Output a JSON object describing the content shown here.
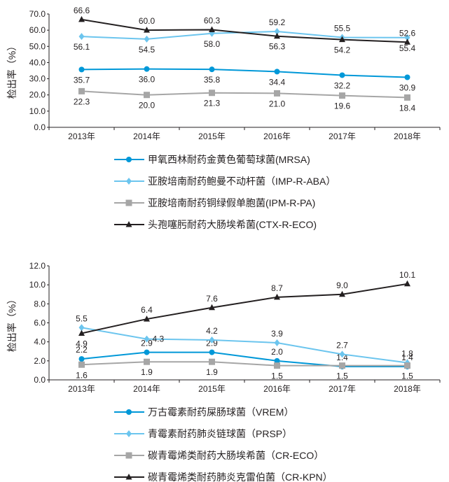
{
  "chart_data": [
    {
      "type": "line",
      "ylabel": "检出率（%）",
      "ylim": [
        0,
        70
      ],
      "yticks": [
        "0.0",
        "10.0",
        "20.0",
        "30.0",
        "40.0",
        "50.0",
        "60.0",
        "70.0"
      ],
      "categories": [
        "2013年",
        "2014年",
        "2015年",
        "2016年",
        "2017年",
        "2018年"
      ],
      "series": [
        {
          "name": "甲氧西林耐药金黄色葡萄球菌(MRSA)",
          "values": [
            35.7,
            36.0,
            35.8,
            34.4,
            32.2,
            30.9
          ],
          "color": "#0098d8",
          "marker": "circle",
          "labels": [
            "35.7",
            "36.0",
            "35.8",
            "34.4",
            "32.2",
            "30.9"
          ],
          "label_pos": [
            "below",
            "below",
            "below",
            "below",
            "below",
            "below"
          ],
          "label_color": "#1aa3de"
        },
        {
          "name": "亚胺培南耐药鲍曼不动杆菌（IMP-R-ABA）",
          "values": [
            56.1,
            54.5,
            58.0,
            59.2,
            55.5,
            55.4
          ],
          "color": "#6cc5ee",
          "marker": "diamond",
          "labels": [
            "56.1",
            "54.5",
            "58.0",
            "59.2",
            "55.5",
            "55.4"
          ],
          "label_pos": [
            "below",
            "below",
            "below",
            "above",
            "above",
            "below"
          ],
          "label_color": "#1aa3de"
        },
        {
          "name": "亚胺培南耐药铜绿假单胞菌(IPM-R-PA)",
          "values": [
            22.3,
            20.0,
            21.3,
            21.0,
            19.6,
            18.4
          ],
          "color": "#a6a6a6",
          "marker": "square",
          "labels": [
            "22.3",
            "20.0",
            "21.3",
            "21.0",
            "19.6",
            "18.4"
          ],
          "label_pos": [
            "below",
            "below",
            "below",
            "below",
            "below",
            "below"
          ],
          "label_color": "#231f20"
        },
        {
          "name": "头孢噻肟耐药大肠埃希菌(CTX-R-ECO)",
          "values": [
            66.6,
            60.0,
            60.3,
            56.3,
            54.2,
            52.6
          ],
          "color": "#231f20",
          "marker": "triangle",
          "labels": [
            "66.6",
            "60.0",
            "60.3",
            "56.3",
            "54.2",
            "52.6"
          ],
          "label_pos": [
            "above",
            "above",
            "above",
            "below",
            "below",
            "above"
          ],
          "label_color": "#231f20"
        }
      ]
    },
    {
      "type": "line",
      "ylabel": "检出率（%）",
      "ylim": [
        0,
        12
      ],
      "yticks": [
        "0.0",
        "2.0",
        "4.0",
        "6.0",
        "8.0",
        "10.0",
        "12.0"
      ],
      "categories": [
        "2013年",
        "2014年",
        "2015年",
        "2016年",
        "2017年",
        "2018年"
      ],
      "series": [
        {
          "name": "万古霉素耐药屎肠球菌（VREM）",
          "values": [
            2.2,
            2.9,
            2.9,
            2.0,
            1.4,
            1.4
          ],
          "color": "#0098d8",
          "marker": "circle",
          "labels": [
            "2.2",
            "2.9",
            "2.9",
            "2.0",
            "1.4",
            "1.4"
          ],
          "label_pos": [
            "above",
            "above",
            "above",
            "above",
            "above",
            "above"
          ],
          "label_color": "#1aa3de"
        },
        {
          "name": "青霉素耐药肺炎链球菌（PRSP）",
          "values": [
            5.5,
            4.3,
            4.2,
            3.9,
            2.7,
            1.8
          ],
          "color": "#6cc5ee",
          "marker": "diamond",
          "labels": [
            "5.5",
            "4.3",
            "4.2",
            "3.9",
            "2.7",
            "1.8"
          ],
          "label_pos": [
            "above",
            "right",
            "above",
            "above",
            "above",
            "above"
          ],
          "label_color": "#1aa3de"
        },
        {
          "name": "碳青霉烯类耐药大肠埃希菌（CR-ECO）",
          "values": [
            1.6,
            1.9,
            1.9,
            1.5,
            1.5,
            1.5
          ],
          "color": "#a6a6a6",
          "marker": "square",
          "labels": [
            "1.6",
            "1.9",
            "1.9",
            "1.5",
            "1.5",
            "1.5"
          ],
          "label_pos": [
            "below",
            "below",
            "below",
            "below",
            "below",
            "below"
          ],
          "label_color": "#231f20"
        },
        {
          "name": "碳青霉烯类耐药肺炎克雷伯菌（CR-KPN）",
          "values": [
            4.9,
            6.4,
            7.6,
            8.7,
            9.0,
            10.1
          ],
          "color": "#231f20",
          "marker": "triangle",
          "labels": [
            "4.9",
            "6.4",
            "7.6",
            "8.7",
            "9.0",
            "10.1"
          ],
          "label_pos": [
            "below",
            "above",
            "above",
            "above",
            "above",
            "above"
          ],
          "label_color": "#231f20"
        }
      ]
    }
  ]
}
